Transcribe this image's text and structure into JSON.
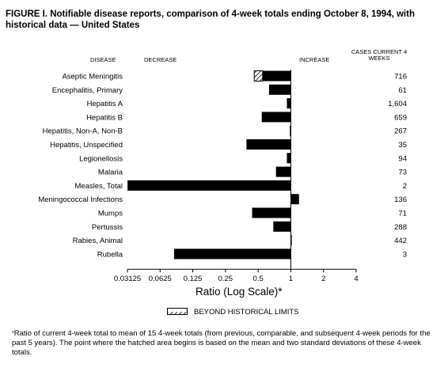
{
  "figure": {
    "title": "FIGURE I. Notifiable disease reports, comparison of 4-week totals ending October 8, 1994, with historical data — United States",
    "footnote_mark": "*",
    "footnote": "Ratio of current 4-week total to mean of 15 4-week totals (from previous, comparable, and subsequent 4-week periods for the past 5 years). The point where the hatched area begins is based on the mean and two standard deviations of these 4-week totals."
  },
  "headers": {
    "disease": "DISEASE",
    "decrease": "DECREASE",
    "increase": "INCREASE",
    "cases": "CASES CURRENT 4 WEEKS"
  },
  "legend": {
    "label": "BEYOND HISTORICAL LIMITS"
  },
  "chart_data": {
    "type": "bar",
    "orientation": "horizontal",
    "scale": "log2",
    "baseline": 1,
    "xlabel": "Ratio (Log Scale)*",
    "xlim": [
      0.03125,
      4
    ],
    "xticks": [
      "0.03125",
      "0.0625",
      "0.125",
      "0.25",
      "0.5",
      "1",
      "2",
      "4"
    ],
    "categories": [
      "Aseptic Meningitis",
      "Encephalitis, Primary",
      "Hepatitis A",
      "Hepatitis B",
      "Hepatitis, Non-A, Non-B",
      "Hepatitis, Unspecified",
      "Legionellosis",
      "Malaria",
      "Measles, Total",
      "Meningococcal Infections",
      "Mumps",
      "Pertussis",
      "Rabies, Animal",
      "Rubella"
    ],
    "values": [
      0.46,
      0.63,
      0.92,
      0.54,
      0.98,
      0.39,
      0.92,
      0.73,
      0.0313,
      1.19,
      0.44,
      0.69,
      1.02,
      0.084
    ],
    "hatched_beyond": [
      0.55,
      null,
      null,
      null,
      null,
      null,
      null,
      null,
      null,
      null,
      null,
      null,
      null,
      null
    ],
    "cases": [
      "716",
      "61",
      "1,604",
      "659",
      "267",
      "35",
      "94",
      "73",
      "2",
      "136",
      "71",
      "288",
      "442",
      "3"
    ]
  }
}
